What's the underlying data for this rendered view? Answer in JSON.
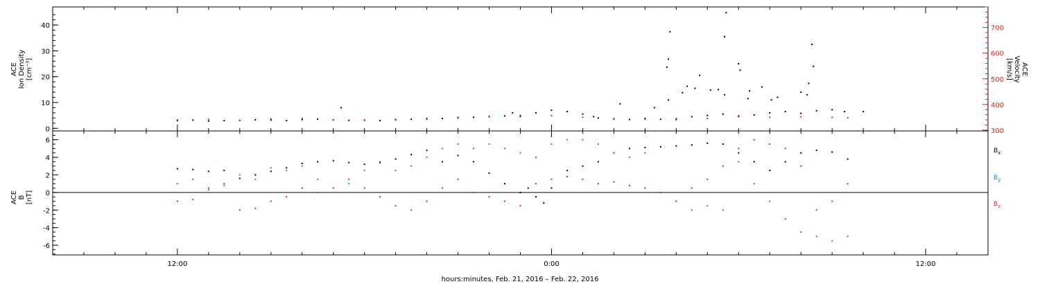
{
  "chart_data": [
    {
      "type": "scatter",
      "panel": "top",
      "ylabel_lines": [
        "ACE",
        "Ion Density",
        "[cm⁻³]"
      ],
      "y2label_lines": [
        "ACE",
        "Velocity",
        "[km/s]"
      ],
      "ylim": [
        -1,
        47
      ],
      "yticks": [
        0,
        10,
        20,
        30,
        40
      ],
      "y2lim": [
        297,
        780
      ],
      "y2ticks": [
        300,
        400,
        500,
        600,
        700
      ],
      "series": [
        {
          "axis": "left",
          "color": "#000000",
          "points": [
            [
              0.0,
              3.0
            ],
            [
              1.0,
              3.2
            ],
            [
              2.0,
              2.8
            ],
            [
              3.0,
              3.0
            ],
            [
              4.0,
              3.1
            ],
            [
              5.0,
              3.3
            ],
            [
              6.0,
              3.2
            ],
            [
              7.0,
              3.0
            ],
            [
              8.0,
              3.4
            ],
            [
              9.0,
              3.6
            ],
            [
              10.0,
              3.3
            ],
            [
              11.0,
              3.1
            ],
            [
              12.0,
              3.2
            ],
            [
              13.0,
              3.0
            ],
            [
              14.0,
              3.3
            ],
            [
              15.0,
              3.5
            ],
            [
              16.0,
              3.6
            ],
            [
              17.0,
              3.8
            ],
            [
              18.0,
              4.0
            ],
            [
              19.0,
              4.3
            ],
            [
              20.0,
              4.5
            ],
            [
              21.0,
              4.8
            ],
            [
              22.0,
              4.6
            ],
            [
              23.0,
              6.0
            ],
            [
              24.0,
              7.0
            ],
            [
              25.0,
              6.5
            ],
            [
              26.0,
              5.5
            ],
            [
              26.7,
              4.5
            ],
            [
              27.0,
              4.0
            ],
            [
              28.0,
              3.6
            ],
            [
              29.0,
              3.4
            ],
            [
              30.0,
              3.8
            ],
            [
              31.0,
              3.5
            ],
            [
              32.0,
              3.7
            ],
            [
              33.0,
              4.5
            ],
            [
              34.0,
              5.0
            ],
            [
              35.0,
              5.5
            ],
            [
              36.0,
              4.8
            ],
            [
              37.0,
              5.2
            ],
            [
              38.0,
              6.0
            ],
            [
              39.0,
              6.5
            ],
            [
              40.0,
              5.8
            ],
            [
              41.0,
              6.8
            ],
            [
              42.0,
              7.2
            ],
            [
              42.8,
              6.5
            ],
            [
              21.5,
              6.0
            ],
            [
              10.5,
              8.0
            ],
            [
              28.4,
              9.5
            ],
            [
              30.6,
              8.0
            ],
            [
              31.5,
              11.0
            ],
            [
              33.2,
              15.5
            ],
            [
              35.1,
              13.0
            ],
            [
              36.6,
              11.5
            ],
            [
              38.5,
              12.0
            ],
            [
              40.4,
              13.0
            ],
            [
              44.0,
              6.5
            ],
            [
              31.5,
              26.8
            ],
            [
              31.4,
              23.7
            ],
            [
              31.6,
              37.4
            ],
            [
              32.4,
              13.8
            ],
            [
              32.7,
              16.3
            ],
            [
              33.5,
              20.5
            ],
            [
              34.2,
              14.8
            ],
            [
              34.7,
              15.0
            ],
            [
              35.2,
              44.8
            ],
            [
              35.1,
              35.5
            ],
            [
              36.0,
              25.0
            ],
            [
              36.1,
              22.5
            ],
            [
              36.7,
              14.5
            ],
            [
              37.5,
              16.0
            ],
            [
              38.1,
              11.0
            ],
            [
              40.7,
              32.5
            ],
            [
              40.8,
              24.0
            ],
            [
              40.5,
              17.4
            ],
            [
              40.0,
              14.0
            ]
          ]
        },
        {
          "axis": "right",
          "color": "#e8231c",
          "points": [
            [
              0.0,
              340
            ],
            [
              2.0,
              342
            ],
            [
              4.0,
              338
            ],
            [
              6.0,
              344
            ],
            [
              8.0,
              346
            ],
            [
              10.0,
              340
            ],
            [
              12.0,
              338
            ],
            [
              14.0,
              342
            ],
            [
              16.0,
              346
            ],
            [
              18.0,
              350
            ],
            [
              20.0,
              354
            ],
            [
              22.0,
              358
            ],
            [
              24.0,
              356
            ],
            [
              26.0,
              350
            ],
            [
              28.0,
              345
            ],
            [
              30.0,
              342
            ],
            [
              32.0,
              340
            ],
            [
              34.0,
              345
            ],
            [
              36.0,
              352
            ],
            [
              38.0,
              350
            ],
            [
              40.0,
              352
            ],
            [
              42.0,
              350
            ],
            [
              43.0,
              348
            ]
          ]
        }
      ]
    },
    {
      "type": "scatter",
      "panel": "bottom",
      "ylabel_lines": [
        "ACE",
        "B",
        "[nT]"
      ],
      "ylim": [
        -7.1,
        7.0
      ],
      "yticks": [
        -6,
        -4,
        -2,
        0,
        2,
        4,
        6
      ],
      "zero_line": true,
      "series": [
        {
          "name": "B",
          "name_sub": "x",
          "color": "#000000",
          "points": [
            [
              0.0,
              2.7
            ],
            [
              1.0,
              2.6
            ],
            [
              2.0,
              2.4
            ],
            [
              3.0,
              2.5
            ],
            [
              4.0,
              1.6
            ],
            [
              5.0,
              2.0
            ],
            [
              6.0,
              2.4
            ],
            [
              7.0,
              2.8
            ],
            [
              8.0,
              3.3
            ],
            [
              9.0,
              3.5
            ],
            [
              10.0,
              3.6
            ],
            [
              11.0,
              3.4
            ],
            [
              12.0,
              3.2
            ],
            [
              13.0,
              3.4
            ],
            [
              14.0,
              3.8
            ],
            [
              15.0,
              4.3
            ],
            [
              16.0,
              4.8
            ],
            [
              17.0,
              3.5
            ],
            [
              18.0,
              4.2
            ],
            [
              19.0,
              3.5
            ],
            [
              20.0,
              2.2
            ],
            [
              21.0,
              1.0
            ],
            [
              22.0,
              0.0
            ],
            [
              22.5,
              0.5
            ],
            [
              23.0,
              -0.5
            ],
            [
              23.5,
              -1.2
            ],
            [
              24.0,
              0.5
            ],
            [
              25.0,
              2.5
            ],
            [
              26.0,
              3.0
            ],
            [
              27.0,
              3.5
            ],
            [
              28.0,
              4.5
            ],
            [
              29.0,
              5.0
            ],
            [
              30.0,
              5.1
            ],
            [
              31.0,
              5.2
            ],
            [
              32.0,
              5.3
            ],
            [
              33.0,
              5.4
            ],
            [
              34.0,
              5.6
            ],
            [
              35.0,
              5.5
            ],
            [
              36.0,
              4.5
            ],
            [
              37.0,
              3.5
            ],
            [
              38.0,
              2.5
            ],
            [
              39.0,
              3.5
            ],
            [
              40.0,
              4.5
            ],
            [
              41.0,
              4.8
            ],
            [
              42.0,
              4.6
            ],
            [
              43.0,
              3.8
            ]
          ]
        },
        {
          "name": "B",
          "name_sub": "y",
          "color": "#1a88d8",
          "points": [
            [
              0.0,
              1.0
            ],
            [
              1.0,
              1.5
            ],
            [
              2.0,
              0.3
            ],
            [
              3.0,
              0.8
            ],
            [
              4.0,
              2.0
            ],
            [
              5.0,
              1.5
            ],
            [
              6.0,
              2.8
            ],
            [
              7.0,
              2.5
            ],
            [
              8.0,
              3.0
            ],
            [
              9.0,
              1.5
            ],
            [
              10.0,
              0.5
            ],
            [
              11.0,
              1.0
            ],
            [
              12.0,
              2.5
            ],
            [
              13.0,
              3.5
            ],
            [
              14.0,
              2.5
            ],
            [
              15.0,
              3.0
            ],
            [
              16.0,
              4.0
            ],
            [
              17.0,
              5.0
            ],
            [
              18.0,
              5.5
            ],
            [
              19.0,
              5.0
            ],
            [
              20.0,
              5.5
            ],
            [
              21.0,
              5.0
            ],
            [
              22.0,
              4.5
            ],
            [
              23.0,
              4.0
            ],
            [
              24.0,
              5.5
            ],
            [
              25.0,
              6.0
            ],
            [
              26.0,
              6.0
            ],
            [
              27.0,
              5.5
            ],
            [
              28.0,
              4.5
            ],
            [
              29.0,
              4.0
            ],
            [
              30.0,
              4.5
            ],
            [
              31.0,
              0.0
            ],
            [
              32.0,
              -1.0
            ],
            [
              33.0,
              -2.0
            ],
            [
              34.0,
              -1.5
            ],
            [
              35.0,
              -2.0
            ],
            [
              36.0,
              3.5
            ],
            [
              37.0,
              1.0
            ],
            [
              38.0,
              -1.0
            ],
            [
              39.0,
              -3.0
            ],
            [
              40.0,
              -4.5
            ],
            [
              41.0,
              -5.0
            ],
            [
              42.0,
              -5.5
            ],
            [
              43.0,
              -5.0
            ]
          ]
        },
        {
          "name": "B",
          "name_sub": "z",
          "color": "#e8231c",
          "points": [
            [
              0.0,
              -1.0
            ],
            [
              1.0,
              -0.8
            ],
            [
              2.0,
              0.5
            ],
            [
              3.0,
              1.0
            ],
            [
              4.0,
              -2.0
            ],
            [
              5.0,
              -1.8
            ],
            [
              6.0,
              -1.0
            ],
            [
              7.0,
              -0.5
            ],
            [
              8.0,
              0.5
            ],
            [
              9.0,
              0.0
            ],
            [
              10.0,
              0.5
            ],
            [
              11.0,
              1.5
            ],
            [
              12.0,
              0.5
            ],
            [
              13.0,
              -0.5
            ],
            [
              14.0,
              -1.5
            ],
            [
              15.0,
              -2.0
            ],
            [
              16.0,
              -1.0
            ],
            [
              17.0,
              0.5
            ],
            [
              18.0,
              1.5
            ],
            [
              19.0,
              0.0
            ],
            [
              20.0,
              -0.5
            ],
            [
              21.0,
              -1.0
            ],
            [
              22.0,
              -1.5
            ],
            [
              23.0,
              1.0
            ],
            [
              24.0,
              1.5
            ],
            [
              25.0,
              1.8
            ],
            [
              26.0,
              1.5
            ],
            [
              27.0,
              1.0
            ],
            [
              28.0,
              1.2
            ],
            [
              29.0,
              0.8
            ],
            [
              30.0,
              0.5
            ],
            [
              31.0,
              0.0
            ],
            [
              32.0,
              -1.0
            ],
            [
              33.0,
              0.5
            ],
            [
              34.0,
              1.5
            ],
            [
              35.0,
              3.0
            ],
            [
              36.0,
              5.0
            ],
            [
              37.0,
              6.0
            ],
            [
              38.0,
              5.5
            ],
            [
              39.0,
              5.0
            ],
            [
              40.0,
              3.0
            ],
            [
              41.0,
              -2.0
            ],
            [
              42.0,
              -1.0
            ],
            [
              43.0,
              1.0
            ]
          ]
        }
      ]
    }
  ],
  "x_axis": {
    "range_hours": [
      -8,
      52
    ],
    "ticks": [
      {
        "hour": 0,
        "label": "12:00"
      },
      {
        "hour": 24,
        "label": "0:00"
      },
      {
        "hour": 48,
        "label": "12:00"
      }
    ],
    "minor_step_hours": 2,
    "title": "hours:minutes, Feb. 21, 2016 – Feb. 22, 2016"
  }
}
